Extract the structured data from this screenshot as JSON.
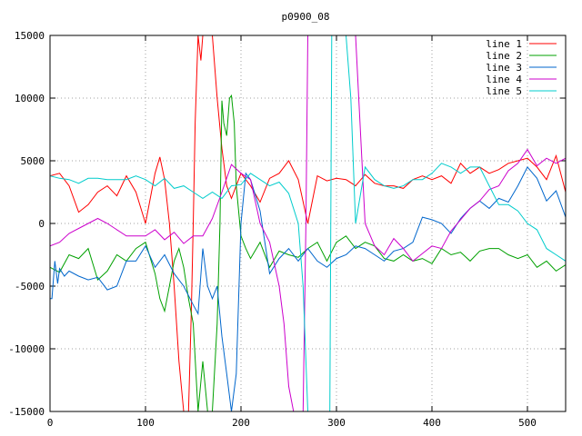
{
  "chart_data": {
    "type": "line",
    "title": "p0900_08",
    "xlabel": "",
    "ylabel": "",
    "xlim": [
      0,
      540
    ],
    "ylim": [
      -15000,
      15000
    ],
    "xticks": [
      0,
      100,
      200,
      300,
      400,
      500
    ],
    "yticks": [
      -15000,
      -10000,
      -5000,
      0,
      5000,
      10000,
      15000
    ],
    "xtick_labels": [
      "0",
      "100",
      "200",
      "300",
      "400",
      "500"
    ],
    "ytick_labels": [
      "-15000",
      "-10000",
      "-5000",
      "0",
      "5000",
      "10000",
      "15000"
    ],
    "grid": true,
    "legend_position": "top-right",
    "series": [
      {
        "name": "line 1",
        "color": "#ff0000",
        "x": [
          0,
          10,
          20,
          30,
          40,
          50,
          60,
          70,
          80,
          90,
          100,
          110,
          115,
          120,
          125,
          130,
          135,
          140,
          145,
          148,
          150,
          152,
          155,
          158,
          160,
          165,
          170,
          175,
          180,
          185,
          190,
          200,
          210,
          220,
          230,
          240,
          250,
          260,
          270,
          280,
          290,
          300,
          310,
          320,
          330,
          340,
          350,
          360,
          370,
          380,
          390,
          400,
          410,
          420,
          430,
          440,
          450,
          460,
          470,
          480,
          490,
          500,
          510,
          520,
          530,
          540
        ],
        "y": [
          3800,
          4000,
          3000,
          900,
          1500,
          2500,
          3000,
          2200,
          3800,
          2500,
          0,
          4000,
          5300,
          3500,
          0,
          -5000,
          -11000,
          -15000,
          -15000,
          -7000,
          0,
          8000,
          15000,
          13000,
          15000,
          15000,
          15000,
          10000,
          6000,
          3000,
          2000,
          4000,
          3000,
          1700,
          3600,
          4000,
          5000,
          3500,
          0,
          3800,
          3400,
          3600,
          3500,
          3000,
          3900,
          3200,
          3000,
          3000,
          2800,
          3500,
          3800,
          3500,
          3800,
          3200,
          4800,
          4000,
          4500,
          4000,
          4300,
          4800,
          5000,
          5200,
          4500,
          3500,
          5400,
          2500
        ]
      },
      {
        "name": "line 2",
        "color": "#00a000",
        "x": [
          0,
          10,
          20,
          30,
          40,
          50,
          60,
          70,
          80,
          90,
          100,
          110,
          115,
          120,
          125,
          130,
          135,
          140,
          145,
          150,
          155,
          160,
          165,
          170,
          175,
          178,
          180,
          182,
          185,
          188,
          190,
          193,
          195,
          200,
          205,
          210,
          220,
          230,
          240,
          250,
          260,
          270,
          280,
          290,
          300,
          310,
          320,
          330,
          340,
          350,
          360,
          370,
          380,
          390,
          400,
          410,
          420,
          430,
          440,
          450,
          460,
          470,
          480,
          490,
          500,
          510,
          520,
          530,
          540
        ],
        "y": [
          -3500,
          -3900,
          -2500,
          -2800,
          -2000,
          -4500,
          -3800,
          -2500,
          -3000,
          -2000,
          -1500,
          -4000,
          -6000,
          -7000,
          -5000,
          -3000,
          -2000,
          -3500,
          -6000,
          -8000,
          -15000,
          -11000,
          -15000,
          -15000,
          -8000,
          0,
          9800,
          8000,
          7000,
          10000,
          10200,
          8000,
          3000,
          -1000,
          -2000,
          -2800,
          -1500,
          -3500,
          -2200,
          -2500,
          -2700,
          -2000,
          -1500,
          -3000,
          -1500,
          -1000,
          -2000,
          -1500,
          -1800,
          -2800,
          -3000,
          -2500,
          -3000,
          -2800,
          -3200,
          -2000,
          -2500,
          -2300,
          -3000,
          -2200,
          -2000,
          -2000,
          -2500,
          -2800,
          -2500,
          -3500,
          -3000,
          -3800,
          -3300
        ]
      },
      {
        "name": "line 3",
        "color": "#0066cc",
        "x": [
          0,
          2,
          5,
          8,
          10,
          15,
          20,
          30,
          40,
          50,
          60,
          70,
          80,
          90,
          100,
          110,
          120,
          130,
          140,
          150,
          155,
          160,
          165,
          170,
          175,
          180,
          185,
          190,
          195,
          200,
          205,
          210,
          220,
          230,
          240,
          250,
          260,
          270,
          280,
          290,
          300,
          310,
          320,
          330,
          340,
          350,
          360,
          370,
          380,
          390,
          400,
          410,
          420,
          430,
          440,
          450,
          460,
          470,
          480,
          490,
          500,
          510,
          520,
          530,
          540
        ],
        "y": [
          -6000,
          -6000,
          -3000,
          -4800,
          -3600,
          -4200,
          -3800,
          -4200,
          -4500,
          -4300,
          -5300,
          -5000,
          -3000,
          -3000,
          -1800,
          -3500,
          -2500,
          -4000,
          -5000,
          -6500,
          -7200,
          -2000,
          -5000,
          -6000,
          -5000,
          -9000,
          -12000,
          -15000,
          -12000,
          0,
          4000,
          3500,
          1000,
          -4000,
          -2800,
          -2000,
          -3000,
          -2000,
          -3000,
          -3500,
          -2800,
          -2500,
          -1800,
          -2000,
          -2500,
          -3000,
          -2200,
          -2000,
          -1500,
          500,
          300,
          0,
          -800,
          400,
          1200,
          1800,
          1200,
          2000,
          1700,
          3000,
          4500,
          3600,
          1800,
          2600,
          500
        ]
      },
      {
        "name": "line 4",
        "color": "#cc00cc",
        "x": [
          0,
          10,
          20,
          30,
          40,
          50,
          60,
          70,
          80,
          90,
          100,
          110,
          120,
          130,
          140,
          150,
          160,
          170,
          180,
          190,
          200,
          210,
          220,
          230,
          240,
          245,
          250,
          255,
          260,
          265,
          268,
          270,
          272,
          275,
          280,
          290,
          300,
          310,
          320,
          330,
          340,
          350,
          360,
          370,
          380,
          390,
          400,
          410,
          420,
          430,
          440,
          450,
          460,
          470,
          480,
          490,
          500,
          510,
          520,
          530,
          540
        ],
        "y": [
          -1800,
          -1500,
          -800,
          -400,
          0,
          400,
          0,
          -500,
          -1000,
          -1000,
          -1000,
          -500,
          -1300,
          -700,
          -1600,
          -1000,
          -1000,
          400,
          2500,
          4700,
          4000,
          3500,
          0,
          -1500,
          -5000,
          -8000,
          -13000,
          -15000,
          -15000,
          -15000,
          0,
          15000,
          15000,
          15000,
          15000,
          15000,
          15000,
          15000,
          15000,
          0,
          -1800,
          -2500,
          -1200,
          -2000,
          -3000,
          -2400,
          -1800,
          -2000,
          -600,
          300,
          1200,
          1800,
          2700,
          3000,
          4200,
          4800,
          5900,
          4600,
          5200,
          4800,
          5200
        ]
      },
      {
        "name": "line 5",
        "color": "#00cccc",
        "x": [
          0,
          10,
          20,
          30,
          40,
          50,
          60,
          70,
          80,
          90,
          100,
          110,
          120,
          130,
          140,
          150,
          160,
          170,
          180,
          190,
          200,
          210,
          220,
          230,
          240,
          250,
          260,
          265,
          270,
          272,
          275,
          280,
          285,
          290,
          293,
          295,
          300,
          305,
          310,
          315,
          320,
          330,
          340,
          350,
          360,
          370,
          380,
          390,
          400,
          410,
          420,
          430,
          440,
          450,
          460,
          470,
          480,
          490,
          500,
          510,
          520,
          530,
          540
        ],
        "y": [
          3800,
          3600,
          3500,
          3200,
          3600,
          3600,
          3500,
          3500,
          3500,
          3800,
          3500,
          3000,
          3600,
          2800,
          3000,
          2500,
          2000,
          2500,
          2000,
          3000,
          3100,
          4000,
          3500,
          3000,
          3300,
          2400,
          0,
          -5000,
          -15000,
          -15000,
          -15000,
          -15000,
          -15000,
          -15000,
          -15000,
          15000,
          15000,
          15000,
          15000,
          10000,
          0,
          4500,
          3500,
          3000,
          2800,
          3000,
          3500,
          3500,
          4000,
          4800,
          4500,
          4000,
          4500,
          4500,
          3000,
          1500,
          1500,
          1000,
          0,
          -500,
          -2000,
          -2500,
          -3000
        ]
      }
    ]
  }
}
